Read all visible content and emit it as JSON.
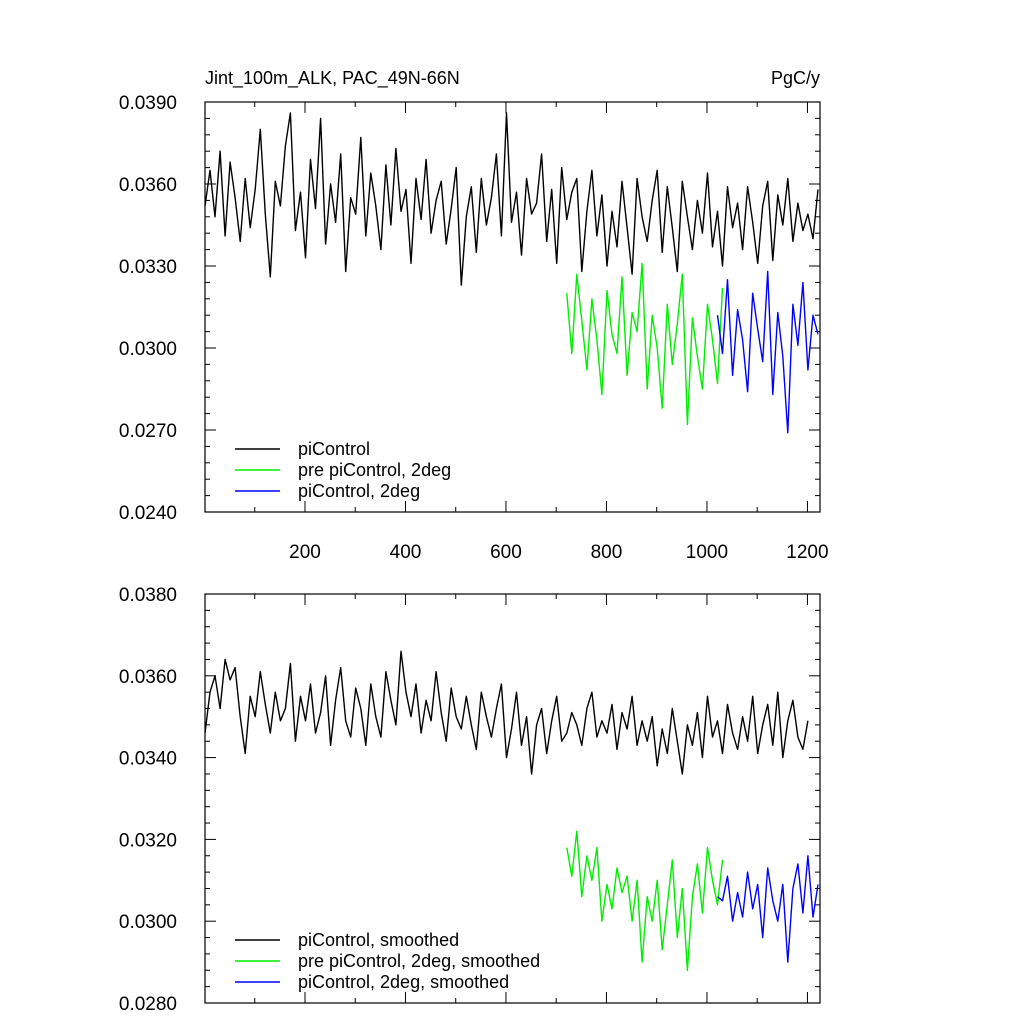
{
  "figure": {
    "title_left": "Jint_100m_ALK, PAC_49N-66N",
    "title_right": "PgC/y"
  },
  "colors": {
    "piControl": "#000000",
    "pre_piControl_2deg": "#00ee00",
    "piControl_2deg": "#0000ff"
  },
  "chart_data": [
    {
      "type": "line",
      "title": "Jint_100m_ALK, PAC_49N-66N",
      "units": "PgC/y",
      "xlim": [
        1,
        1225
      ],
      "ylim": [
        0.024,
        0.039
      ],
      "x_ticks": [
        200,
        400,
        600,
        800,
        1000,
        1200
      ],
      "x_tick_labels": [
        "200",
        "400",
        "600",
        "800",
        "1000",
        "1200"
      ],
      "y_ticks": [
        0.024,
        0.027,
        0.03,
        0.033,
        0.036,
        0.039
      ],
      "y_tick_labels": [
        "0.0240",
        "0.0270",
        "0.0300",
        "0.0330",
        "0.0360",
        "0.0390"
      ],
      "legend": "bottom-left",
      "series": [
        {
          "name": "piControl",
          "color": "#000000",
          "x_start": 1,
          "x_step": 10,
          "values": [
            0.0352,
            0.0365,
            0.0348,
            0.0372,
            0.0341,
            0.0368,
            0.0355,
            0.0339,
            0.0362,
            0.0344,
            0.0358,
            0.038,
            0.0349,
            0.0326,
            0.0361,
            0.0352,
            0.0374,
            0.0386,
            0.0343,
            0.0357,
            0.0333,
            0.0369,
            0.0351,
            0.0384,
            0.0338,
            0.036,
            0.0346,
            0.0371,
            0.0328,
            0.0355,
            0.0349,
            0.0377,
            0.0341,
            0.0364,
            0.0352,
            0.0336,
            0.0367,
            0.0345,
            0.0373,
            0.035,
            0.0358,
            0.0331,
            0.0362,
            0.0347,
            0.0369,
            0.0342,
            0.0354,
            0.0361,
            0.0338,
            0.0351,
            0.0366,
            0.0323,
            0.0348,
            0.0359,
            0.0335,
            0.0362,
            0.0345,
            0.0355,
            0.0371,
            0.0341,
            0.0386,
            0.0346,
            0.0357,
            0.0334,
            0.0362,
            0.0349,
            0.0353,
            0.0371,
            0.0339,
            0.0358,
            0.0331,
            0.0366,
            0.0347,
            0.0357,
            0.0362,
            0.0328,
            0.035,
            0.0365,
            0.0341,
            0.0356,
            0.033,
            0.035,
            0.0337,
            0.0361,
            0.0344,
            0.0327,
            0.0362,
            0.0348,
            0.0339,
            0.0354,
            0.0365,
            0.0335,
            0.0359,
            0.0344,
            0.0328,
            0.0361,
            0.0348,
            0.0336,
            0.0354,
            0.0342,
            0.0364,
            0.0337,
            0.035,
            0.033,
            0.0359,
            0.0344,
            0.0353,
            0.0336,
            0.0359,
            0.0346,
            0.0331,
            0.0352,
            0.0361,
            0.0332,
            0.0356,
            0.0345,
            0.0362,
            0.0339,
            0.0353,
            0.0343,
            0.0349,
            0.034,
            0.0358
          ]
        },
        {
          "name": "pre piControl, 2deg",
          "color": "#00ee00",
          "x_start": 721,
          "x_step": 10,
          "values": [
            0.032,
            0.0298,
            0.0327,
            0.031,
            0.0292,
            0.0318,
            0.0303,
            0.0283,
            0.0321,
            0.0305,
            0.0298,
            0.0326,
            0.029,
            0.0313,
            0.0306,
            0.0331,
            0.0285,
            0.0312,
            0.03,
            0.0278,
            0.0316,
            0.0294,
            0.0309,
            0.0327,
            0.0272,
            0.0311,
            0.0297,
            0.0285,
            0.0316,
            0.0303,
            0.0287,
            0.0322
          ]
        },
        {
          "name": "piControl, 2deg",
          "color": "#0000ff",
          "x_start": 1021,
          "x_step": 10,
          "values": [
            0.0312,
            0.0298,
            0.0325,
            0.029,
            0.0314,
            0.0303,
            0.0284,
            0.032,
            0.0307,
            0.0295,
            0.0328,
            0.0283,
            0.0313,
            0.0297,
            0.0269,
            0.0316,
            0.0301,
            0.0324,
            0.0292,
            0.0312,
            0.0305
          ]
        }
      ]
    },
    {
      "type": "line",
      "xlim": [
        1,
        1225
      ],
      "ylim": [
        0.028,
        0.038
      ],
      "x_ticks": [
        200,
        400,
        600,
        800,
        1000,
        1200
      ],
      "y_ticks": [
        0.028,
        0.03,
        0.032,
        0.034,
        0.036,
        0.038
      ],
      "y_tick_labels": [
        "0.0280",
        "0.0300",
        "0.0320",
        "0.0340",
        "0.0360",
        "0.0380"
      ],
      "legend": "bottom-left",
      "series": [
        {
          "name": "piControl, smoothed",
          "color": "#000000",
          "x_start": 1,
          "x_step": 10,
          "values": [
            0.0346,
            0.0356,
            0.036,
            0.0352,
            0.0364,
            0.0359,
            0.0362,
            0.035,
            0.0341,
            0.0355,
            0.035,
            0.0361,
            0.0353,
            0.0346,
            0.0356,
            0.0349,
            0.0352,
            0.0363,
            0.0344,
            0.0355,
            0.0349,
            0.0358,
            0.0346,
            0.0351,
            0.036,
            0.0343,
            0.0354,
            0.0362,
            0.0349,
            0.0345,
            0.0357,
            0.0352,
            0.0343,
            0.0358,
            0.035,
            0.0345,
            0.0361,
            0.0354,
            0.0348,
            0.0366,
            0.0356,
            0.035,
            0.0358,
            0.0346,
            0.0354,
            0.0349,
            0.0361,
            0.0351,
            0.0344,
            0.0357,
            0.035,
            0.0347,
            0.0355,
            0.0348,
            0.0342,
            0.0356,
            0.035,
            0.0345,
            0.0352,
            0.0358,
            0.034,
            0.0347,
            0.0356,
            0.0343,
            0.035,
            0.0336,
            0.0348,
            0.0352,
            0.0341,
            0.0349,
            0.0355,
            0.0344,
            0.0346,
            0.0351,
            0.0348,
            0.0343,
            0.0352,
            0.0356,
            0.0345,
            0.0349,
            0.0346,
            0.0353,
            0.0342,
            0.0351,
            0.0347,
            0.0355,
            0.0343,
            0.0349,
            0.0344,
            0.035,
            0.0338,
            0.0347,
            0.0341,
            0.0352,
            0.0344,
            0.0336,
            0.0348,
            0.0343,
            0.0351,
            0.034,
            0.0355,
            0.0345,
            0.0349,
            0.0341,
            0.0353,
            0.0346,
            0.0342,
            0.035,
            0.0344,
            0.0355,
            0.0341,
            0.0348,
            0.0353,
            0.0343,
            0.0356,
            0.034,
            0.0349,
            0.0354,
            0.0345,
            0.0342,
            0.0349
          ]
        },
        {
          "name": "pre piControl, 2deg, smoothed",
          "color": "#00ee00",
          "x_start": 721,
          "x_step": 10,
          "values": [
            0.0318,
            0.0311,
            0.0322,
            0.0306,
            0.0316,
            0.031,
            0.0318,
            0.03,
            0.0309,
            0.0303,
            0.0313,
            0.0307,
            0.0311,
            0.03,
            0.031,
            0.029,
            0.0306,
            0.03,
            0.031,
            0.0293,
            0.0304,
            0.0315,
            0.0296,
            0.0308,
            0.0288,
            0.0306,
            0.0314,
            0.0302,
            0.0318,
            0.031,
            0.0304,
            0.0315
          ]
        },
        {
          "name": "piControl, 2deg, smoothed",
          "color": "#0000ff",
          "x_start": 1021,
          "x_step": 10,
          "values": [
            0.0306,
            0.0305,
            0.0311,
            0.03,
            0.0307,
            0.0301,
            0.0312,
            0.0303,
            0.0309,
            0.0296,
            0.0313,
            0.0305,
            0.03,
            0.0309,
            0.029,
            0.0308,
            0.0314,
            0.0302,
            0.0316,
            0.0301,
            0.0309
          ]
        }
      ]
    }
  ]
}
